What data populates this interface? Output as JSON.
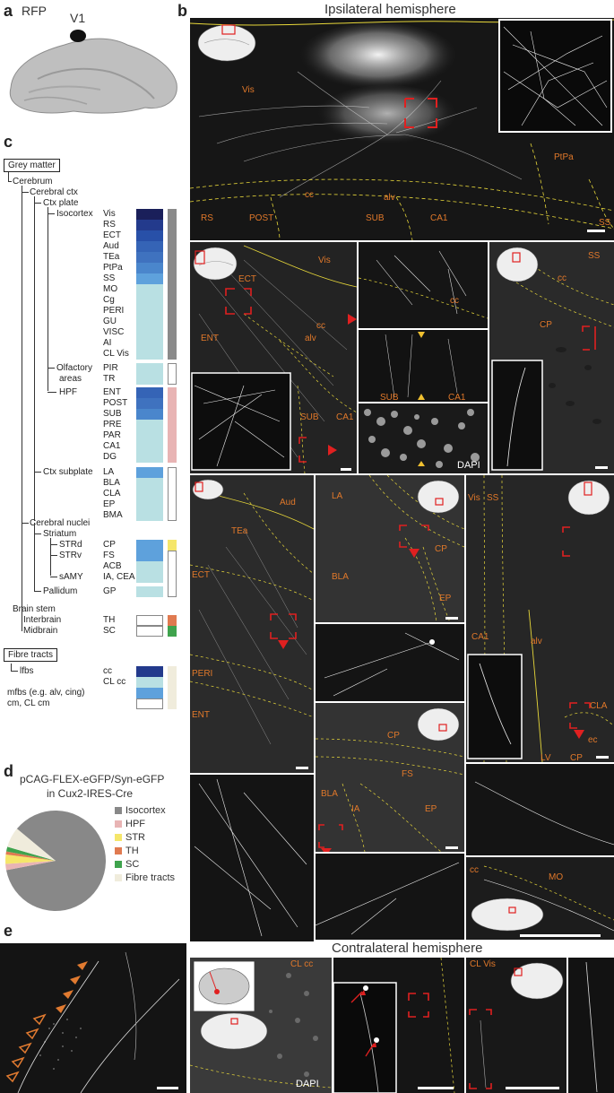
{
  "panel_labels": {
    "a": "a",
    "b": "b",
    "c": "c",
    "d": "d",
    "e": "e"
  },
  "panel_a": {
    "rfp": "RFP",
    "v1": "V1"
  },
  "panel_b": {
    "ipsi_title": "Ipsilateral hemisphere",
    "contra_title": "Contralateral hemisphere",
    "top_labels": [
      "Vis",
      "PtPa",
      "cc",
      "alv",
      "RS",
      "POST",
      "SUB",
      "CA1",
      "SS"
    ],
    "row2_labels": {
      "vis": "Vis",
      "ect": "ECT",
      "ent": "ENT",
      "cc": "cc",
      "alv": "alv",
      "sub": "SUB",
      "ca1": "CA1",
      "cc2": "cc",
      "sub2": "SUB",
      "ca1b": "CA1",
      "dapi": "DAPI",
      "ss": "SS",
      "cc3": "cc",
      "cp": "CP"
    },
    "row3_labels": {
      "aud": "Aud",
      "tea": "TEa",
      "ect": "ECT",
      "peri": "PERI",
      "ent": "ENT",
      "la": "LA",
      "cp": "CP",
      "bla": "BLA",
      "ep": "EP",
      "vis": "Vis",
      "ss": "SS",
      "ca1": "CA1",
      "alv": "alv",
      "cla": "CLA",
      "lv": "LV",
      "ec": "ec",
      "cp2": "CP"
    },
    "row4_labels": {
      "cp": "CP",
      "fs": "FS",
      "bla": "BLA",
      "ia": "IA",
      "ep": "EP",
      "cc": "cc",
      "mo": "MO"
    },
    "contra_labels": {
      "clcc": "CL cc",
      "clvis": "CL Vis",
      "dapi": "DAPI"
    }
  },
  "panel_c": {
    "grey_matter": "Grey matter",
    "cerebrum": "Cerebrum",
    "cerebral_ctx": "Cerebral ctx",
    "ctx_plate": "Ctx plate",
    "isocortex": "Isocortex",
    "olfactory": "Olfactory",
    "areas": "areas",
    "hpf": "HPF",
    "ctx_subplate": "Ctx subplate",
    "cerebral_nuclei": "Cerebral nuclei",
    "striatum": "Striatum",
    "strd": "STRd",
    "strv": "STRv",
    "samy": "sAMY",
    "pallidum": "Pallidum",
    "brain_stem": "Brain stem",
    "interbrain": "Interbrain",
    "midbrain": "Midbrain",
    "fibre_tracts": "Fibre tracts",
    "lfbs": "lfbs",
    "mfbs": "mfbs (e.g. alv, cing)",
    "cm": "cm, CL cm",
    "rows": [
      {
        "label": "Vis",
        "color": "#1a1f5a"
      },
      {
        "label": "RS",
        "color": "#233a8c"
      },
      {
        "label": "ECT",
        "color": "#2850a8"
      },
      {
        "label": "Aud",
        "color": "#3564b6"
      },
      {
        "label": "TEa",
        "color": "#3f72bf"
      },
      {
        "label": "PtPa",
        "color": "#4a86cc"
      },
      {
        "label": "SS",
        "color": "#5ea1dc"
      },
      {
        "label": "MO",
        "color": "#b9e0e3"
      },
      {
        "label": "Cg",
        "color": "#b9e0e3"
      },
      {
        "label": "PERI",
        "color": "#b9e0e3"
      },
      {
        "label": "GU",
        "color": "#b9e0e3"
      },
      {
        "label": "VISC",
        "color": "#b9e0e3"
      },
      {
        "label": "AI",
        "color": "#b9e0e3"
      },
      {
        "label": "CL Vis",
        "color": "#b9e0e3"
      },
      {
        "label": "PIR",
        "color": "#b9e0e3"
      },
      {
        "label": "TR",
        "color": "#b9e0e3"
      },
      {
        "label": "ENT",
        "color": "#3564b6"
      },
      {
        "label": "POST",
        "color": "#3f72bf"
      },
      {
        "label": "SUB",
        "color": "#4a86cc"
      },
      {
        "label": "PRE",
        "color": "#b9e0e3"
      },
      {
        "label": "PAR",
        "color": "#b9e0e3"
      },
      {
        "label": "CA1",
        "color": "#b9e0e3"
      },
      {
        "label": "DG",
        "color": "#b9e0e3"
      },
      {
        "label": "LA",
        "color": "#5ea1dc"
      },
      {
        "label": "BLA",
        "color": "#b9e0e3"
      },
      {
        "label": "CLA",
        "color": "#b9e0e3"
      },
      {
        "label": "EP",
        "color": "#b9e0e3"
      },
      {
        "label": "BMA",
        "color": "#b9e0e3"
      },
      {
        "label": "CP",
        "color": "#5ea1dc"
      },
      {
        "label": "FS",
        "color": "#5ea1dc"
      },
      {
        "label": "ACB",
        "color": "#b9e0e3"
      },
      {
        "label": "IA, CEA",
        "color": "#b9e0e3"
      },
      {
        "label": "GP",
        "color": "#b9e0e3"
      },
      {
        "label": "TH",
        "color": "#ffffff"
      },
      {
        "label": "SC",
        "color": "#ffffff"
      },
      {
        "label": "cc",
        "color": "#233a8c"
      },
      {
        "label": "CL cc",
        "color": "#b9e0e3"
      },
      {
        "label": "",
        "color": "#5ea1dc"
      },
      {
        "label": "",
        "color": "#ffffff"
      }
    ],
    "side_colors": {
      "isocortex": "#8a8a8a",
      "hpf": "#e8b4b4",
      "str": "#f5e66a",
      "th": "#e07a50",
      "sc": "#3fa34d",
      "fibre": "#f0ecdc"
    }
  },
  "panel_d": {
    "title1": "pCAG-FLEX-eGFP/Syn-eGFP",
    "title2": "in Cux2-IRES-Cre",
    "legend": [
      {
        "label": "Isocortex",
        "color": "#888888"
      },
      {
        "label": "HPF",
        "color": "#e8b4b4"
      },
      {
        "label": "STR",
        "color": "#f5e66a"
      },
      {
        "label": "TH",
        "color": "#e07a50"
      },
      {
        "label": "SC",
        "color": "#3fa34d"
      },
      {
        "label": "Fibre tracts",
        "color": "#f0ecdc"
      }
    ]
  },
  "chart_data": {
    "type": "pie",
    "categories": [
      "Isocortex",
      "HPF",
      "STR",
      "TH",
      "SC",
      "Fibre tracts"
    ],
    "values": [
      86,
      2,
      3,
      1,
      1.5,
      6.5
    ],
    "colors": [
      "#888888",
      "#e8b4b4",
      "#f5e66a",
      "#e07a50",
      "#3fa34d",
      "#f0ecdc"
    ]
  }
}
